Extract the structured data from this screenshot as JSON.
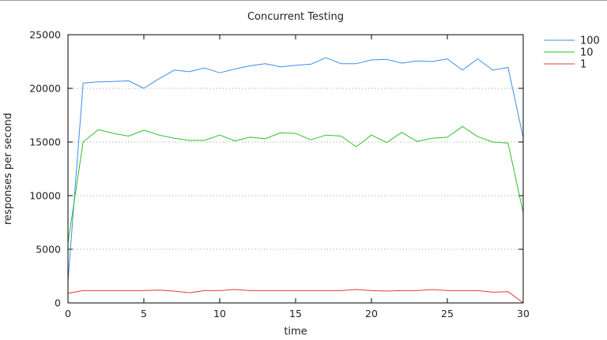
{
  "chart_data": {
    "type": "line",
    "title": "Concurrent Testing",
    "xlabel": "time",
    "ylabel": "responses per second",
    "xlim": [
      0,
      30
    ],
    "ylim": [
      0,
      25000
    ],
    "x_ticks": [
      0,
      5,
      10,
      15,
      20,
      25,
      30
    ],
    "y_ticks": [
      0,
      5000,
      10000,
      15000,
      20000,
      25000
    ],
    "grid": "horizontal dotted",
    "legend_position": "top-right outside",
    "x": [
      0,
      1,
      2,
      3,
      4,
      5,
      6,
      7,
      8,
      9,
      10,
      11,
      12,
      13,
      14,
      15,
      16,
      17,
      18,
      19,
      20,
      21,
      22,
      23,
      24,
      25,
      26,
      27,
      28,
      29,
      30
    ],
    "series": [
      {
        "name": "100",
        "color": "#3d8ee8",
        "values": [
          2000,
          20500,
          20600,
          20650,
          20700,
          20000,
          20900,
          21700,
          21550,
          21900,
          21450,
          21800,
          22100,
          22300,
          22000,
          22150,
          22250,
          22850,
          22300,
          22300,
          22650,
          22700,
          22350,
          22550,
          22500,
          22750,
          21700,
          22750,
          21700,
          21950,
          15400
        ]
      },
      {
        "name": "10",
        "color": "#2ec02e",
        "values": [
          5600,
          15000,
          16150,
          15800,
          15550,
          16100,
          15650,
          15350,
          15150,
          15150,
          15650,
          15100,
          15450,
          15300,
          15850,
          15800,
          15200,
          15650,
          15550,
          14550,
          15650,
          14950,
          15900,
          15050,
          15350,
          15450,
          16450,
          15500,
          15000,
          14900,
          8400
        ]
      },
      {
        "name": "1",
        "color": "#e83a3a",
        "values": [
          900,
          1150,
          1150,
          1150,
          1150,
          1150,
          1200,
          1100,
          950,
          1150,
          1150,
          1250,
          1150,
          1150,
          1150,
          1150,
          1150,
          1150,
          1150,
          1250,
          1150,
          1100,
          1150,
          1150,
          1250,
          1150,
          1150,
          1150,
          1000,
          1050,
          0
        ]
      }
    ]
  }
}
